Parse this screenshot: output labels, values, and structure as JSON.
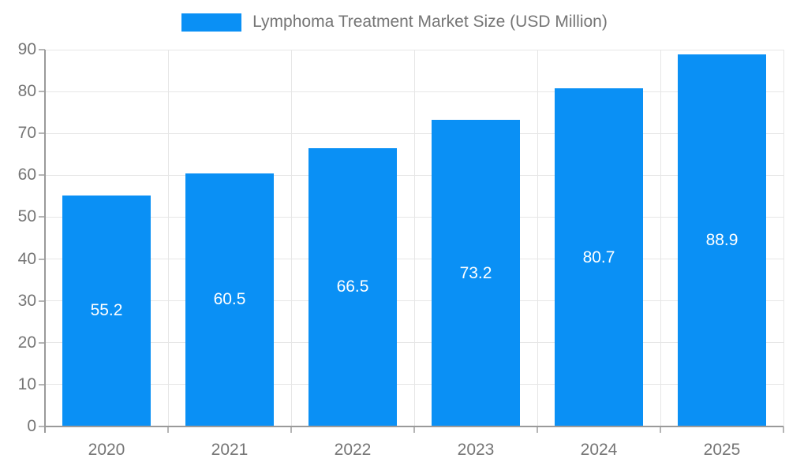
{
  "chart_data": {
    "type": "bar",
    "title": "Lymphoma Treatment Market Size (USD Million)",
    "categories": [
      "2020",
      "2021",
      "2022",
      "2023",
      "2024",
      "2025"
    ],
    "values": [
      55.2,
      60.5,
      66.5,
      73.2,
      80.7,
      88.9
    ],
    "data_labels": [
      "55.2",
      "60.5",
      "66.5",
      "73.2",
      "80.7",
      "88.9"
    ],
    "xlabel": "",
    "ylabel": "",
    "ylim": [
      0,
      90
    ],
    "yticks": [
      0,
      10,
      20,
      30,
      40,
      50,
      60,
      70,
      80,
      90
    ],
    "ytick_labels": [
      "0",
      "10",
      "20",
      "30",
      "40",
      "50",
      "60",
      "70",
      "80",
      "90"
    ],
    "grid": "on",
    "legend_position": "top",
    "colors": {
      "bar": "#0a90f5",
      "bar_value_text": "#ffffff",
      "axis_text": "#757575",
      "legend_text": "#757575",
      "grid_line": "#e6e6e6",
      "axis_line": "#9a9a9a",
      "tick_mark": "#b5b5b5",
      "background": "#ffffff"
    }
  }
}
